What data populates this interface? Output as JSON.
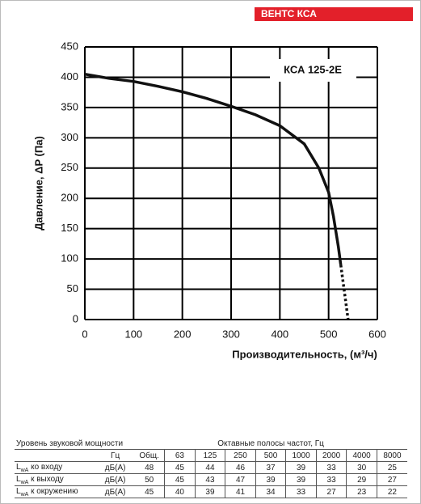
{
  "brand": "ВЕНТС КСА",
  "chart_data": {
    "type": "line",
    "ylabel": "Давление, ΔP (Па)",
    "xlabel": "Производительность, (м³/ч)",
    "xlim": [
      0,
      600
    ],
    "xticks": [
      0,
      100,
      200,
      300,
      400,
      500,
      600
    ],
    "ylim": [
      0,
      450
    ],
    "yticks": [
      0,
      50,
      100,
      150,
      200,
      250,
      300,
      350,
      400,
      450
    ],
    "grid": true,
    "series": [
      {
        "name": "КСА 125-2E",
        "color": "#111111",
        "style": "solid",
        "x": [
          0,
          50,
          100,
          150,
          200,
          250,
          300,
          350,
          400,
          450,
          480,
          500,
          510,
          520,
          525
        ],
        "values": [
          405,
          398,
          393,
          385,
          376,
          365,
          352,
          338,
          320,
          290,
          250,
          210,
          170,
          120,
          90
        ]
      },
      {
        "color": "#111111",
        "style": "dotted",
        "x": [
          525,
          540
        ],
        "values": [
          90,
          0
        ]
      }
    ]
  },
  "table": {
    "header": [
      "Уровень звуковой мощности",
      "Октавные полосы частот, Гц"
    ],
    "units_header": "Гц",
    "columns": [
      "Общ.",
      63,
      125,
      250,
      500,
      1000,
      2000,
      4000,
      8000
    ],
    "rows": [
      {
        "symbol": "L",
        "sub": "wA",
        "label": "ко входу",
        "unit": "дБ(А)",
        "values": [
          48,
          45,
          44,
          46,
          37,
          39,
          33,
          30,
          25
        ]
      },
      {
        "symbol": "L",
        "sub": "wA",
        "label": "к выходу",
        "unit": "дБ(А)",
        "values": [
          50,
          45,
          43,
          47,
          39,
          39,
          33,
          29,
          27
        ]
      },
      {
        "symbol": "L",
        "sub": "wA",
        "label": "к окружению",
        "unit": "дБ(А)",
        "values": [
          45,
          40,
          39,
          41,
          34,
          33,
          27,
          23,
          22
        ]
      }
    ]
  }
}
